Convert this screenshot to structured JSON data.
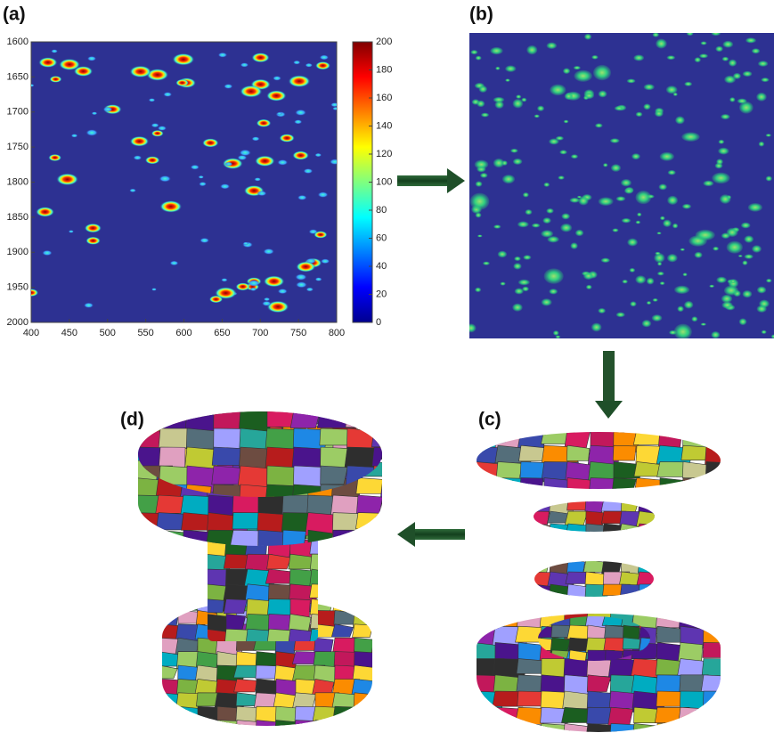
{
  "panels": [
    {
      "label": "(a)",
      "heatmap": {
        "xlim": [
          400,
          800
        ],
        "xticks": [
          400,
          450,
          500,
          550,
          600,
          650,
          700,
          750,
          800
        ],
        "ylim": [
          1600,
          2000
        ],
        "yticks": [
          1600,
          1650,
          1700,
          1750,
          1800,
          1850,
          1900,
          1950,
          2000
        ],
        "colorbar": {
          "lim": [
            0,
            200
          ],
          "ticks": [
            0,
            20,
            40,
            60,
            80,
            100,
            120,
            140,
            160,
            180,
            200
          ]
        }
      }
    },
    {
      "label": "(b)"
    },
    {
      "label": "(c)"
    },
    {
      "label": "(d)"
    }
  ]
}
